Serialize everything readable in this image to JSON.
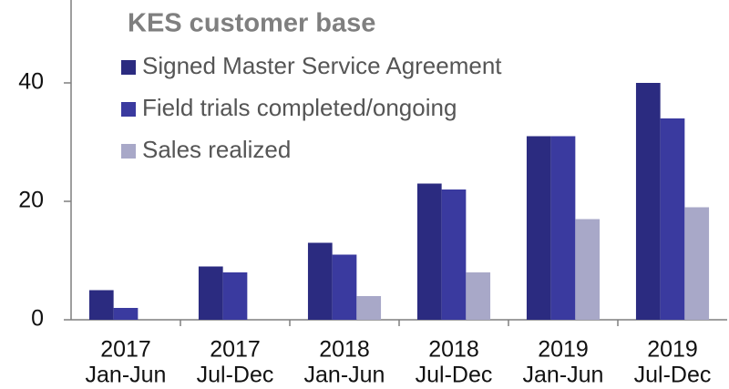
{
  "chart_data": {
    "type": "bar",
    "title": "KES customer base",
    "categories": [
      [
        "2017",
        "Jan-Jun"
      ],
      [
        "2017",
        "Jul-Dec"
      ],
      [
        "2018",
        "Jan-Jun"
      ],
      [
        "2018",
        "Jul-Dec"
      ],
      [
        "2019",
        "Jan-Jun"
      ],
      [
        "2019",
        "Jul-Dec"
      ]
    ],
    "series": [
      {
        "name": "Signed Master Service Agreement",
        "color": "#2b2b80",
        "values": [
          5,
          9,
          13,
          23,
          31,
          40
        ]
      },
      {
        "name": "Field trials completed/ongoing",
        "color": "#3a3a9f",
        "values": [
          2,
          8,
          11,
          22,
          31,
          34
        ]
      },
      {
        "name": "Sales realized",
        "color": "#a8a8c8",
        "values": [
          0,
          0,
          4,
          8,
          17,
          19
        ]
      }
    ],
    "ylim": [
      0,
      54
    ],
    "yticks": [
      0,
      20,
      40
    ],
    "grid": false,
    "legend": "top"
  }
}
